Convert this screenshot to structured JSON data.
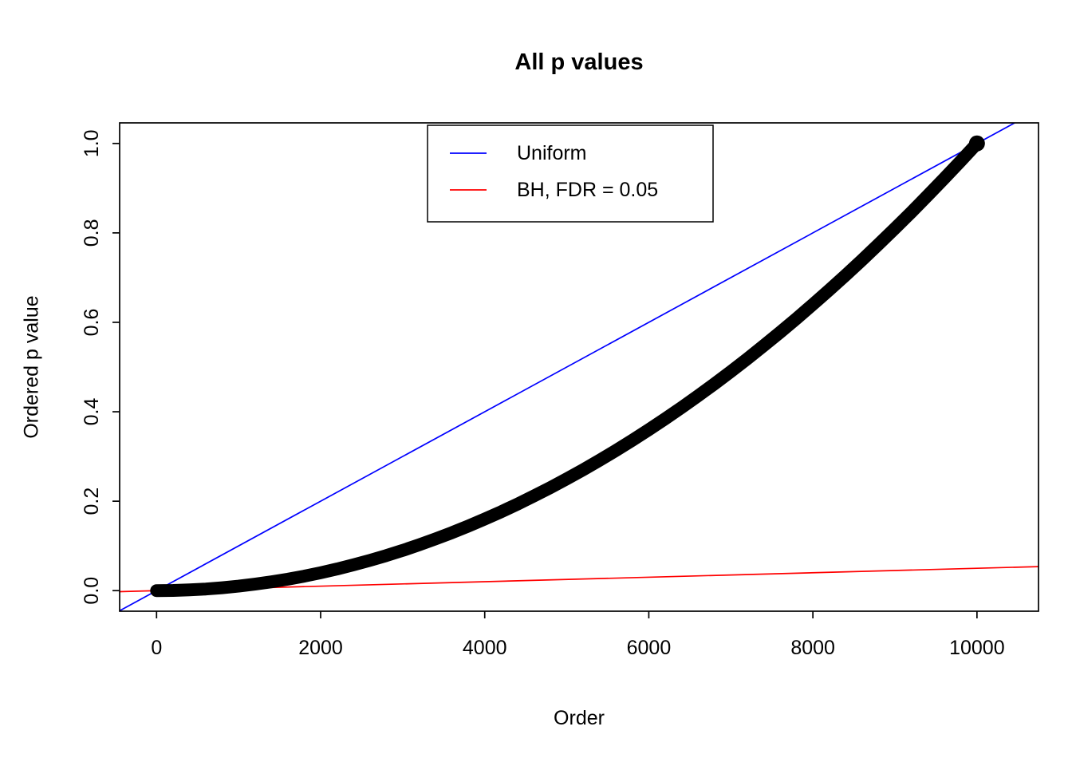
{
  "chart_data": {
    "type": "scatter",
    "title": "All p values",
    "xlabel": "Order",
    "ylabel": "Ordered p value",
    "xlim": [
      -450,
      10750
    ],
    "ylim": [
      -0.046,
      1.046
    ],
    "xtick_values": [
      0,
      2000,
      4000,
      6000,
      8000,
      10000
    ],
    "xtick_labels": [
      "0",
      "2000",
      "4000",
      "6000",
      "8000",
      "10000"
    ],
    "ytick_values": [
      0.0,
      0.2,
      0.4,
      0.6,
      0.8,
      1.0
    ],
    "ytick_labels": [
      "0.0",
      "0.2",
      "0.4",
      "0.6",
      "0.8",
      "1.0"
    ],
    "background": "#ffffff",
    "grid": false,
    "legend": {
      "position": "top-center",
      "entries": [
        {
          "label": "Uniform",
          "color": "#0000ff"
        },
        {
          "label": "BH, FDR = 0.05",
          "color": "#ff0000"
        }
      ]
    },
    "lines": [
      {
        "name": "uniform-line",
        "color": "#0000ff",
        "intercept": 0,
        "slope": 0.0001
      },
      {
        "name": "bh-fdr-line",
        "color": "#ff0000",
        "intercept": 0,
        "slope": 5e-06
      }
    ],
    "series": [
      {
        "name": "ordered-p-values",
        "color": "#000000",
        "points": [
          [
            0,
            0
          ],
          [
            200,
            0.0004
          ],
          [
            400,
            0.0016
          ],
          [
            600,
            0.0036
          ],
          [
            800,
            0.0064
          ],
          [
            1000,
            0.01
          ],
          [
            1200,
            0.0144
          ],
          [
            1400,
            0.0196
          ],
          [
            1600,
            0.0256
          ],
          [
            1800,
            0.0324
          ],
          [
            2000,
            0.04
          ],
          [
            2200,
            0.0484
          ],
          [
            2400,
            0.0576
          ],
          [
            2600,
            0.0676
          ],
          [
            2800,
            0.0784
          ],
          [
            3000,
            0.09
          ],
          [
            3200,
            0.1024
          ],
          [
            3400,
            0.1156
          ],
          [
            3600,
            0.1296
          ],
          [
            3800,
            0.1444
          ],
          [
            4000,
            0.16
          ],
          [
            4200,
            0.1764
          ],
          [
            4400,
            0.1936
          ],
          [
            4600,
            0.2116
          ],
          [
            4800,
            0.2304
          ],
          [
            5000,
            0.25
          ],
          [
            5200,
            0.2704
          ],
          [
            5400,
            0.2916
          ],
          [
            5600,
            0.3136
          ],
          [
            5800,
            0.3364
          ],
          [
            6000,
            0.36
          ],
          [
            6200,
            0.3844
          ],
          [
            6400,
            0.4096
          ],
          [
            6600,
            0.4356
          ],
          [
            6800,
            0.4624
          ],
          [
            7000,
            0.49
          ],
          [
            7200,
            0.5184
          ],
          [
            7400,
            0.5476
          ],
          [
            7600,
            0.5776
          ],
          [
            7800,
            0.6084
          ],
          [
            8000,
            0.64
          ],
          [
            8200,
            0.6724
          ],
          [
            8400,
            0.7056
          ],
          [
            8600,
            0.7396
          ],
          [
            8800,
            0.7744
          ],
          [
            9000,
            0.81
          ],
          [
            9200,
            0.8464
          ],
          [
            9400,
            0.8836
          ],
          [
            9600,
            0.9216
          ],
          [
            9800,
            0.9604
          ],
          [
            10000,
            1
          ]
        ]
      }
    ]
  }
}
